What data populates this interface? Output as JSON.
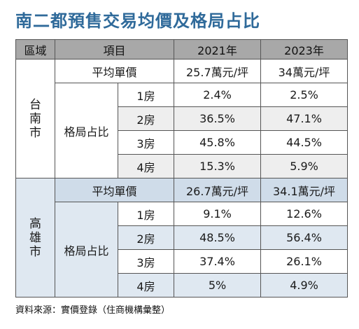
{
  "title": "南二都預售交易均價及格局占比",
  "headers": {
    "region": "區域",
    "item": "項目",
    "y2021": "2021年",
    "y2023": "2023年"
  },
  "regions": [
    {
      "chars": [
        "台",
        "南",
        "市"
      ],
      "avg_label": "平均單價",
      "avg_2021": "25.7萬元/坪",
      "avg_2023": "34萬元/坪",
      "layout_label": "格局占比",
      "rows": [
        {
          "room": "1房",
          "v2021": "2.4%",
          "v2023": "2.5%"
        },
        {
          "room": "2房",
          "v2021": "36.5%",
          "v2023": "47.1%"
        },
        {
          "room": "3房",
          "v2021": "45.8%",
          "v2023": "44.5%"
        },
        {
          "room": "4房",
          "v2021": "15.3%",
          "v2023": "5.9%"
        }
      ]
    },
    {
      "chars": [
        "高",
        "雄",
        "市"
      ],
      "avg_label": "平均單價",
      "avg_2021": "26.7萬元/坪",
      "avg_2023": "34.1萬元/坪",
      "layout_label": "格局占比",
      "rows": [
        {
          "room": "1房",
          "v2021": "9.1%",
          "v2023": "12.6%"
        },
        {
          "room": "2房",
          "v2021": "48.5%",
          "v2023": "56.4%"
        },
        {
          "room": "3房",
          "v2021": "37.4%",
          "v2023": "26.1%"
        },
        {
          "room": "4房",
          "v2021": "5%",
          "v2023": "4.9%"
        }
      ]
    }
  ],
  "footer": "資料來源：實價登錄（住商機構彙整）",
  "colors": {
    "title": "#2f6a9a",
    "header_bg": "#a8a8a8",
    "kaohsiung_bg": "#dfe8f1"
  }
}
